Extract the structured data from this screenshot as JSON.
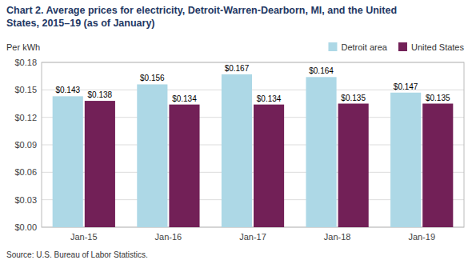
{
  "chart_data": {
    "type": "bar",
    "title": "Chart 2. Average prices for electricity, Detroit-Warren-Dearborn, MI, and the United\nStates, 2015–19  (as of January)",
    "ylabel": "Per kWh",
    "source": "Source: U.S. Bureau of Labor Statistics.",
    "categories": [
      "Jan-15",
      "Jan-16",
      "Jan-17",
      "Jan-18",
      "Jan-19"
    ],
    "series": [
      {
        "name": "Detroit area",
        "color": "#ADD8E6",
        "values": [
          0.143,
          0.156,
          0.167,
          0.164,
          0.147
        ],
        "value_labels": [
          "$0.143",
          "$0.156",
          "$0.167",
          "$0.164",
          "$0.147"
        ]
      },
      {
        "name": "United States",
        "color": "#722057",
        "values": [
          0.138,
          0.134,
          0.134,
          0.135,
          0.135
        ],
        "value_labels": [
          "$0.138",
          "$0.134",
          "$0.134",
          "$0.135",
          "$0.135"
        ]
      }
    ],
    "ylim": [
      0,
      0.18
    ],
    "yticks": [
      {
        "value": 0.0,
        "label": "$0.00"
      },
      {
        "value": 0.03,
        "label": "$0.03"
      },
      {
        "value": 0.06,
        "label": "$0.06"
      },
      {
        "value": 0.09,
        "label": "$0.09"
      },
      {
        "value": 0.12,
        "label": "$0.12"
      },
      {
        "value": 0.15,
        "label": "$0.15"
      },
      {
        "value": 0.18,
        "label": "$0.18"
      }
    ],
    "grid": true,
    "legend": "top-right",
    "data_labels": true
  }
}
